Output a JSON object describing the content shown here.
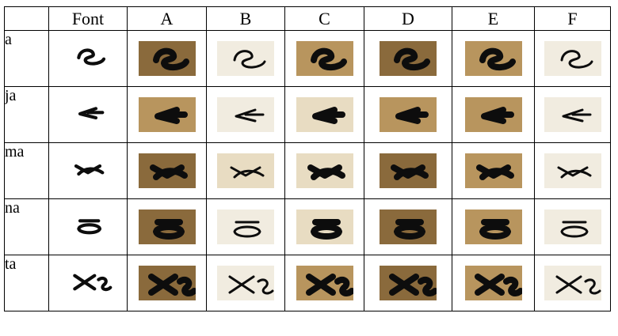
{
  "header": {
    "corner": "",
    "font_label": "Font",
    "columns": [
      "A",
      "B",
      "C",
      "D",
      "E",
      "F"
    ]
  },
  "rows": [
    {
      "label": "a"
    },
    {
      "label": "ja"
    },
    {
      "label": "ma"
    },
    {
      "label": "na"
    },
    {
      "label": "ta"
    }
  ],
  "colors": {
    "ink": "#0d0d0d",
    "parchment_dark": "#8a6a3c",
    "parchment_mid": "#b8955e",
    "parchment_light": "#e8dcc2",
    "paper_white": "#f1ece0"
  }
}
